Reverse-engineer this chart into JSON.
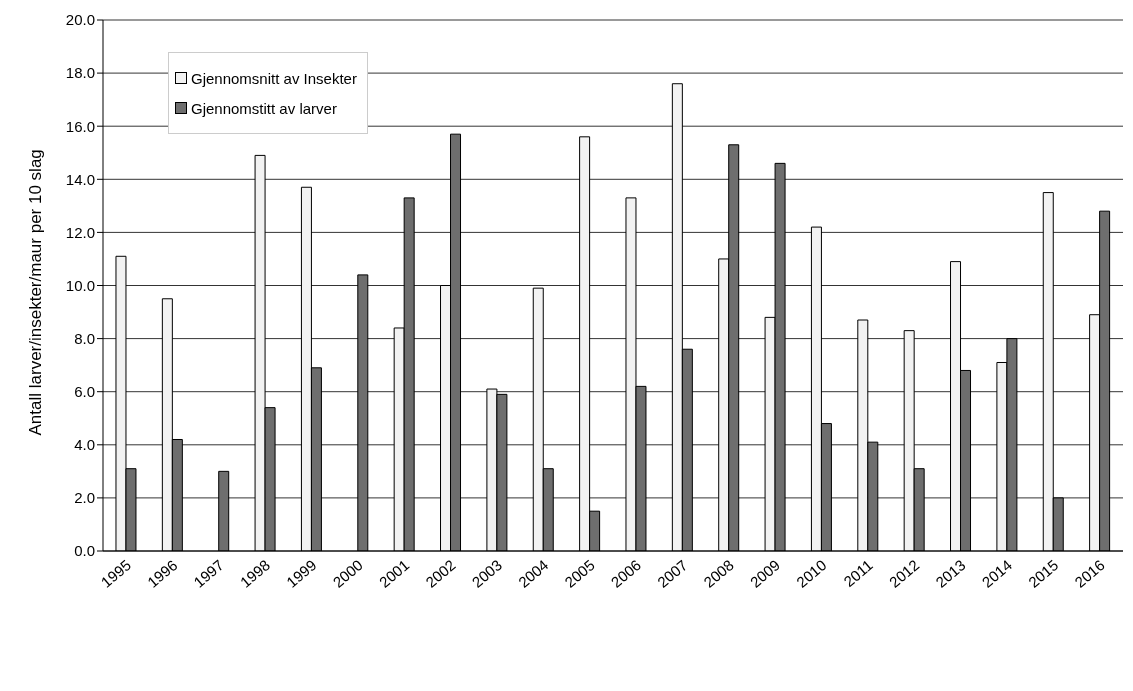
{
  "chart_data": {
    "type": "bar",
    "ylabel": "Antall larver/insekter/maur per 10 slag",
    "categories": [
      "1995",
      "1996",
      "1997",
      "1998",
      "1999",
      "2000",
      "2001",
      "2002",
      "2003",
      "2004",
      "2005",
      "2006",
      "2007",
      "2008",
      "2009",
      "2010",
      "2011",
      "2012",
      "2013",
      "2014",
      "2015",
      "2016"
    ],
    "series": [
      {
        "name": "Gjennomsnitt av Insekter",
        "color": "#f2f2f2",
        "values": [
          11.1,
          9.5,
          null,
          14.9,
          13.7,
          null,
          8.4,
          10.0,
          6.1,
          9.9,
          15.6,
          13.3,
          17.6,
          11.0,
          8.8,
          12.2,
          8.7,
          8.3,
          10.9,
          7.1,
          13.5,
          8.9
        ]
      },
      {
        "name": "Gjennomstitt av larver",
        "color": "#6e6e6e",
        "values": [
          3.1,
          4.2,
          3.0,
          5.4,
          6.9,
          10.4,
          13.3,
          15.7,
          5.9,
          3.1,
          1.5,
          6.2,
          7.6,
          15.3,
          14.6,
          4.8,
          4.1,
          3.1,
          6.8,
          8.0,
          2.0,
          12.8
        ]
      }
    ],
    "ylim": [
      0,
      20
    ],
    "yticks": [
      {
        "value": 0,
        "label": "0.0"
      },
      {
        "value": 2,
        "label": "2.0"
      },
      {
        "value": 4,
        "label": "4.0"
      },
      {
        "value": 6,
        "label": "6.0"
      },
      {
        "value": 8,
        "label": "8.0"
      },
      {
        "value": 10,
        "label": "10.0"
      },
      {
        "value": 12,
        "label": "12.0"
      },
      {
        "value": 14,
        "label": "14.0"
      },
      {
        "value": 16,
        "label": "16.0"
      },
      {
        "value": 18,
        "label": "18.0"
      },
      {
        "value": 20,
        "label": "20.0"
      }
    ],
    "grid": "y",
    "legend": "top left"
  }
}
